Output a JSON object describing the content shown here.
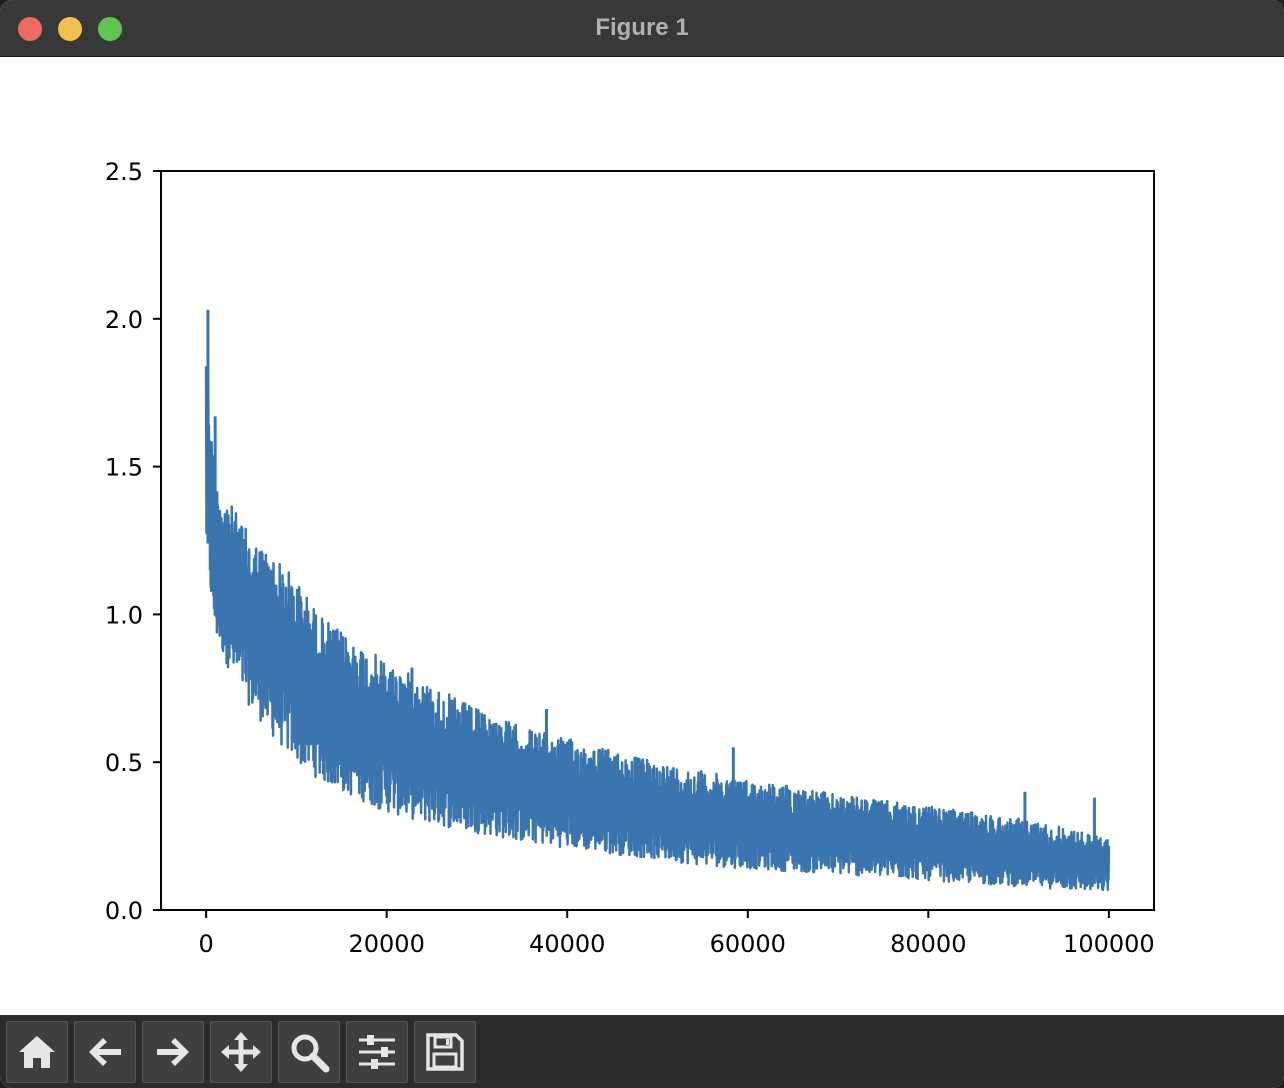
{
  "window": {
    "title": "Figure 1"
  },
  "toolbar": {
    "buttons": [
      {
        "name": "home-button",
        "icon": "home-icon"
      },
      {
        "name": "back-button",
        "icon": "arrow-left-icon"
      },
      {
        "name": "forward-button",
        "icon": "arrow-right-icon"
      },
      {
        "name": "pan-button",
        "icon": "move-icon"
      },
      {
        "name": "zoom-button",
        "icon": "magnifier-icon"
      },
      {
        "name": "configure-subplots-button",
        "icon": "sliders-icon"
      },
      {
        "name": "save-button",
        "icon": "floppy-disk-icon"
      }
    ]
  },
  "chart_data": {
    "type": "line",
    "title": "",
    "xlabel": "",
    "ylabel": "",
    "xlim": [
      -5000,
      105000
    ],
    "ylim": [
      0,
      2.5
    ],
    "xticks": [
      "0",
      "20000",
      "40000",
      "60000",
      "80000",
      "100000"
    ],
    "xtick_values": [
      0,
      20000,
      40000,
      60000,
      80000,
      100000
    ],
    "yticks": [
      "0.0",
      "0.5",
      "1.0",
      "1.5",
      "2.0",
      "2.5"
    ],
    "ytick_values": [
      0,
      0.5,
      1.0,
      1.5,
      2.0,
      2.5
    ],
    "grid": false,
    "color": "#3b75af",
    "series": [
      {
        "x": [
          0,
          500,
          1000,
          2000,
          3000,
          5000,
          7500,
          10000,
          12500,
          15000,
          20000,
          25000,
          30000,
          35000,
          40000,
          45000,
          50000,
          55000,
          60000,
          65000,
          70000,
          75000,
          80000,
          85000,
          90000,
          95000,
          100000
        ],
        "y_max": [
          2.03,
          1.68,
          1.45,
          1.42,
          1.36,
          1.26,
          1.2,
          1.12,
          1.0,
          0.94,
          0.84,
          0.76,
          0.68,
          0.62,
          0.58,
          0.54,
          0.5,
          0.47,
          0.44,
          0.42,
          0.39,
          0.37,
          0.35,
          0.33,
          0.31,
          0.28,
          0.24
        ],
        "y_min": [
          1.2,
          1.05,
          0.92,
          0.85,
          0.78,
          0.68,
          0.58,
          0.5,
          0.44,
          0.4,
          0.33,
          0.29,
          0.26,
          0.23,
          0.21,
          0.19,
          0.17,
          0.15,
          0.14,
          0.13,
          0.12,
          0.11,
          0.1,
          0.09,
          0.08,
          0.07,
          0.06
        ],
        "spikes": [
          [
            200,
            2.03
          ],
          [
            1000,
            1.67
          ],
          [
            16500,
            0.86
          ],
          [
            22800,
            0.82
          ],
          [
            37700,
            0.68
          ],
          [
            58400,
            0.55
          ],
          [
            90700,
            0.4
          ],
          [
            98400,
            0.38
          ]
        ]
      }
    ]
  }
}
